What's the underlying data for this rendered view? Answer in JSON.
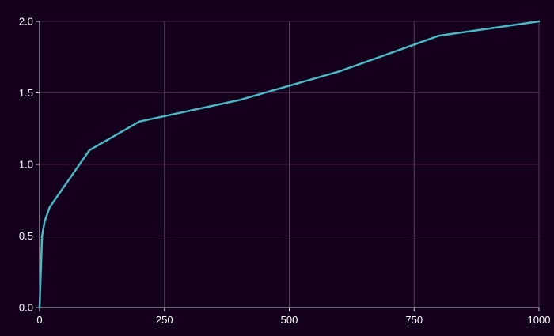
{
  "chart_data": {
    "type": "line",
    "title": "",
    "xlabel": "",
    "ylabel": "",
    "xlim": [
      0,
      1000
    ],
    "ylim": [
      0,
      2
    ],
    "x_ticks": [
      0,
      250,
      500,
      750,
      1000
    ],
    "y_ticks": [
      0,
      0.5,
      1,
      1.5,
      2
    ],
    "x_tick_labels": [
      "0",
      "250",
      "500",
      "750",
      "1000"
    ],
    "y_tick_labels": [
      "0.0",
      "0.5",
      "1.0",
      "1.5",
      "2.0"
    ],
    "grid": true,
    "legend": "none",
    "series": [
      {
        "color": "#4bb8c4",
        "x": [
          0,
          5,
          10,
          20,
          40,
          100,
          200,
          400,
          600,
          800,
          1000
        ],
        "y": [
          0,
          0.5,
          0.6,
          0.7,
          0.8,
          1.1,
          1.3,
          1.45,
          1.65,
          1.9,
          2.0
        ]
      }
    ],
    "colors": {
      "background": "#14001c",
      "grid_horizontal": "#4a1a48",
      "grid_vertical": "#5a3a66",
      "axis": "#d0d0d8",
      "tick_text": "#ffffff"
    }
  }
}
